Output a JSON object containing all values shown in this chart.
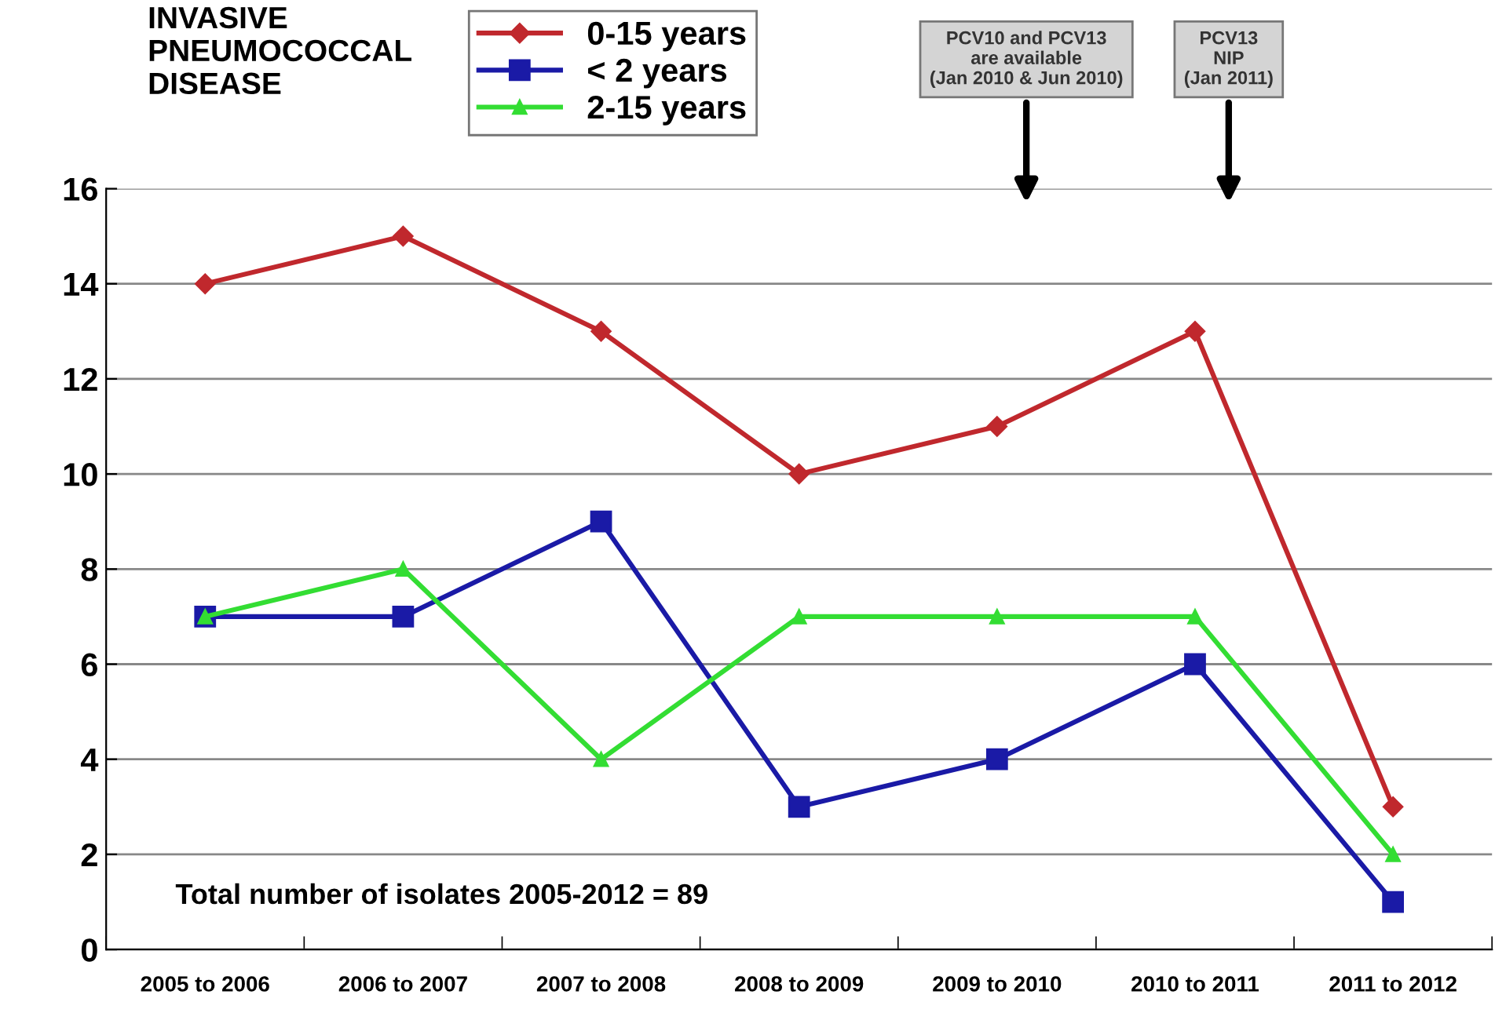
{
  "chart_data": {
    "type": "line",
    "title": "INVASIVE\nPNEUMOCOCCAL\nDISEASE",
    "categories": [
      "2005 to 2006",
      "2006 to 2007",
      "2007 to 2008",
      "2008 to 2009",
      "2009 to 2010",
      "2010 to 2011",
      "2011 to 2012"
    ],
    "series": [
      {
        "name": "0-15 years",
        "color": "#c0282d",
        "marker": "diamond",
        "values": [
          14,
          15,
          13,
          10,
          11,
          13,
          3
        ]
      },
      {
        "name": "< 2 years",
        "color": "#1a1aa6",
        "marker": "square",
        "values": [
          7,
          7,
          9,
          3,
          4,
          6,
          1
        ]
      },
      {
        "name": "2-15 years",
        "color": "#33dd33",
        "marker": "triangle",
        "values": [
          7,
          8,
          4,
          7,
          7,
          7,
          2
        ]
      }
    ],
    "ylim": [
      0,
      16
    ],
    "yticks": [
      0,
      2,
      4,
      6,
      8,
      10,
      12,
      14,
      16
    ],
    "grid": "y",
    "legend": "top",
    "annotations": [
      "PCV10 and PCV13\nare available\n(Jan 2010 & Jun 2010)",
      "PCV13\nNIP\n(Jan 2011)",
      "Total number of isolates 2005-2012 = 89"
    ]
  }
}
